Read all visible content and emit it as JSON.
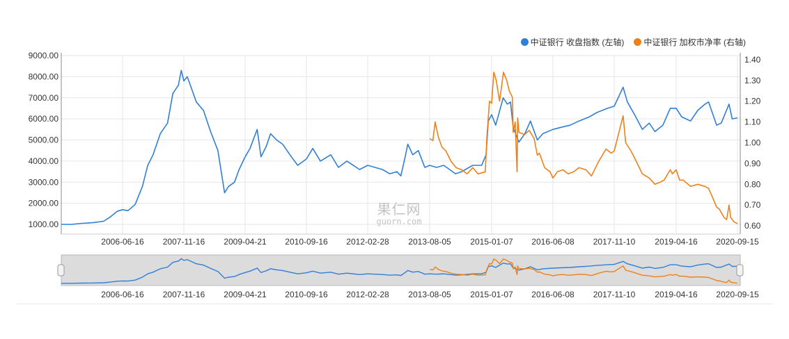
{
  "chart_data": {
    "type": "line",
    "legend_placement": "top-right",
    "grid": true,
    "x_tick_labels": [
      "2006-06-16",
      "2007-11-16",
      "2009-04-21",
      "2010-09-16",
      "2012-02-28",
      "2013-08-05",
      "2015-01-07",
      "2016-06-08",
      "2017-11-10",
      "2019-04-16",
      "2020-09-15"
    ],
    "y_left": {
      "ticks": [
        "1000.00",
        "2000.00",
        "3000.00",
        "4000.00",
        "5000.00",
        "6000.00",
        "7000.00",
        "8000.00",
        "9000.00"
      ],
      "range": [
        540,
        9000
      ]
    },
    "y_right": {
      "ticks": [
        "0.60",
        "0.70",
        "0.80",
        "0.90",
        "1.00",
        "1.10",
        "1.20",
        "1.30",
        "1.40"
      ],
      "range": [
        0.56,
        1.42
      ]
    },
    "series": [
      {
        "name": "中证银行 收盘指数 (左轴)",
        "axis": "left",
        "color": "#2f7ed8",
        "points": [
          [
            "2005-01-04",
            1000
          ],
          [
            "2005-04-01",
            1000
          ],
          [
            "2005-07-01",
            1050
          ],
          [
            "2005-10-01",
            1080
          ],
          [
            "2006-01-04",
            1150
          ],
          [
            "2006-03-01",
            1350
          ],
          [
            "2006-05-01",
            1620
          ],
          [
            "2006-06-16",
            1700
          ],
          [
            "2006-08-01",
            1650
          ],
          [
            "2006-10-01",
            1950
          ],
          [
            "2006-12-01",
            2800
          ],
          [
            "2007-01-15",
            3800
          ],
          [
            "2007-03-01",
            4300
          ],
          [
            "2007-05-01",
            5300
          ],
          [
            "2007-07-01",
            5800
          ],
          [
            "2007-08-15",
            7200
          ],
          [
            "2007-10-01",
            7600
          ],
          [
            "2007-10-25",
            8300
          ],
          [
            "2007-11-16",
            7800
          ],
          [
            "2007-12-15",
            8000
          ],
          [
            "2008-01-10",
            7600
          ],
          [
            "2008-03-01",
            6800
          ],
          [
            "2008-05-01",
            6400
          ],
          [
            "2008-07-01",
            5400
          ],
          [
            "2008-09-01",
            4500
          ],
          [
            "2008-10-28",
            2500
          ],
          [
            "2008-12-01",
            2800
          ],
          [
            "2009-01-20",
            3000
          ],
          [
            "2009-03-01",
            3600
          ],
          [
            "2009-04-21",
            4200
          ],
          [
            "2009-06-01",
            4600
          ],
          [
            "2009-07-31",
            5500
          ],
          [
            "2009-09-01",
            4200
          ],
          [
            "2009-10-15",
            4700
          ],
          [
            "2009-11-20",
            5300
          ],
          [
            "2010-01-10",
            5000
          ],
          [
            "2010-03-01",
            4800
          ],
          [
            "2010-05-01",
            4300
          ],
          [
            "2010-07-05",
            3800
          ],
          [
            "2010-09-16",
            4100
          ],
          [
            "2010-11-10",
            4600
          ],
          [
            "2011-01-15",
            4000
          ],
          [
            "2011-04-15",
            4300
          ],
          [
            "2011-06-20",
            3700
          ],
          [
            "2011-09-01",
            4000
          ],
          [
            "2011-12-20",
            3600
          ],
          [
            "2012-02-28",
            3800
          ],
          [
            "2012-05-01",
            3700
          ],
          [
            "2012-07-01",
            3600
          ],
          [
            "2012-09-01",
            3400
          ],
          [
            "2012-11-01",
            3500
          ],
          [
            "2012-12-04",
            3300
          ],
          [
            "2013-01-10",
            4200
          ],
          [
            "2013-02-01",
            4800
          ],
          [
            "2013-03-15",
            4300
          ],
          [
            "2013-05-01",
            4500
          ],
          [
            "2013-06-25",
            3700
          ],
          [
            "2013-08-05",
            3800
          ],
          [
            "2013-10-01",
            3700
          ],
          [
            "2013-12-01",
            3800
          ],
          [
            "2014-03-10",
            3400
          ],
          [
            "2014-05-01",
            3500
          ],
          [
            "2014-08-01",
            3800
          ],
          [
            "2014-10-15",
            3800
          ],
          [
            "2014-11-21",
            4300
          ],
          [
            "2014-12-10",
            5900
          ],
          [
            "2015-01-07",
            6200
          ],
          [
            "2015-02-10",
            5700
          ],
          [
            "2015-04-15",
            7000
          ],
          [
            "2015-05-20",
            6700
          ],
          [
            "2015-06-15",
            6800
          ],
          [
            "2015-07-08",
            5600
          ],
          [
            "2015-08-25",
            4900
          ],
          [
            "2015-10-15",
            5300
          ],
          [
            "2015-12-01",
            5900
          ],
          [
            "2016-01-28",
            5000
          ],
          [
            "2016-03-15",
            5300
          ],
          [
            "2016-06-08",
            5500
          ],
          [
            "2016-08-15",
            5600
          ],
          [
            "2016-11-01",
            5700
          ],
          [
            "2017-01-15",
            5900
          ],
          [
            "2017-04-15",
            6100
          ],
          [
            "2017-06-15",
            6300
          ],
          [
            "2017-09-15",
            6500
          ],
          [
            "2017-11-10",
            6600
          ],
          [
            "2018-01-24",
            7500
          ],
          [
            "2018-03-01",
            6800
          ],
          [
            "2018-05-01",
            6200
          ],
          [
            "2018-07-05",
            5500
          ],
          [
            "2018-09-01",
            5800
          ],
          [
            "2018-10-19",
            5400
          ],
          [
            "2018-12-25",
            5700
          ],
          [
            "2019-02-25",
            6500
          ],
          [
            "2019-04-16",
            6500
          ],
          [
            "2019-06-01",
            6100
          ],
          [
            "2019-08-15",
            5900
          ],
          [
            "2019-10-15",
            6400
          ],
          [
            "2019-12-15",
            6700
          ],
          [
            "2020-01-15",
            6800
          ],
          [
            "2020-03-23",
            5700
          ],
          [
            "2020-05-01",
            5800
          ],
          [
            "2020-07-06",
            6700
          ],
          [
            "2020-08-01",
            6000
          ],
          [
            "2020-09-15",
            6050
          ]
        ]
      },
      {
        "name": "中证银行 加权市净率 (右轴)",
        "axis": "right",
        "color": "#ee8018",
        "points": [
          [
            "2013-08-05",
            1.02
          ],
          [
            "2013-09-01",
            1.01
          ],
          [
            "2013-09-20",
            1.1
          ],
          [
            "2013-10-15",
            1.03
          ],
          [
            "2013-11-15",
            0.98
          ],
          [
            "2013-12-20",
            0.96
          ],
          [
            "2014-02-01",
            0.91
          ],
          [
            "2014-03-15",
            0.88
          ],
          [
            "2014-05-01",
            0.87
          ],
          [
            "2014-06-15",
            0.85
          ],
          [
            "2014-08-01",
            0.88
          ],
          [
            "2014-09-15",
            0.85
          ],
          [
            "2014-11-15",
            0.86
          ],
          [
            "2014-11-28",
            1.03
          ],
          [
            "2014-12-20",
            1.2
          ],
          [
            "2015-01-07",
            1.19
          ],
          [
            "2015-01-25",
            1.34
          ],
          [
            "2015-02-15",
            1.3
          ],
          [
            "2015-03-15",
            1.2
          ],
          [
            "2015-04-17",
            1.34
          ],
          [
            "2015-05-15",
            1.3
          ],
          [
            "2015-06-05",
            1.25
          ],
          [
            "2015-07-01",
            1.22
          ],
          [
            "2015-07-08",
            1.05
          ],
          [
            "2015-07-25",
            1.1
          ],
          [
            "2015-08-10",
            0.86
          ],
          [
            "2015-08-15",
            1.12
          ],
          [
            "2015-08-26",
            1.05
          ],
          [
            "2015-10-15",
            1.04
          ],
          [
            "2015-11-20",
            1.06
          ],
          [
            "2016-01-01",
            1.02
          ],
          [
            "2016-01-28",
            0.94
          ],
          [
            "2016-02-15",
            0.95
          ],
          [
            "2016-03-30",
            0.88
          ],
          [
            "2016-05-15",
            0.86
          ],
          [
            "2016-06-08",
            0.83
          ],
          [
            "2016-07-15",
            0.86
          ],
          [
            "2016-09-01",
            0.87
          ],
          [
            "2016-10-15",
            0.85
          ],
          [
            "2016-12-01",
            0.86
          ],
          [
            "2017-01-15",
            0.88
          ],
          [
            "2017-03-15",
            0.87
          ],
          [
            "2017-05-01",
            0.84
          ],
          [
            "2017-07-01",
            0.91
          ],
          [
            "2017-09-01",
            0.97
          ],
          [
            "2017-10-15",
            0.95
          ],
          [
            "2017-11-10",
            0.96
          ],
          [
            "2018-01-24",
            1.13
          ],
          [
            "2018-02-15",
            1.0
          ],
          [
            "2018-04-01",
            0.96
          ],
          [
            "2018-05-15",
            0.91
          ],
          [
            "2018-07-05",
            0.85
          ],
          [
            "2018-09-01",
            0.83
          ],
          [
            "2018-10-19",
            0.8
          ],
          [
            "2018-12-01",
            0.81
          ],
          [
            "2019-01-04",
            0.82
          ],
          [
            "2019-02-25",
            0.87
          ],
          [
            "2019-03-15",
            0.85
          ],
          [
            "2019-04-16",
            0.87
          ],
          [
            "2019-05-15",
            0.82
          ],
          [
            "2019-06-15",
            0.82
          ],
          [
            "2019-08-15",
            0.79
          ],
          [
            "2019-10-15",
            0.8
          ],
          [
            "2019-12-15",
            0.79
          ],
          [
            "2020-01-15",
            0.78
          ],
          [
            "2020-02-15",
            0.74
          ],
          [
            "2020-03-23",
            0.69
          ],
          [
            "2020-04-15",
            0.68
          ],
          [
            "2020-05-25",
            0.64
          ],
          [
            "2020-06-15",
            0.63
          ],
          [
            "2020-07-06",
            0.7
          ],
          [
            "2020-07-20",
            0.64
          ],
          [
            "2020-08-15",
            0.62
          ],
          [
            "2020-09-15",
            0.61
          ]
        ]
      }
    ]
  },
  "watermark": {
    "cn": "果仁网",
    "en": "guorn.com"
  },
  "colors": {
    "grid": "#e6e6e6",
    "navigator_fill": "#dcdcdc",
    "axis_text": "#333333"
  }
}
